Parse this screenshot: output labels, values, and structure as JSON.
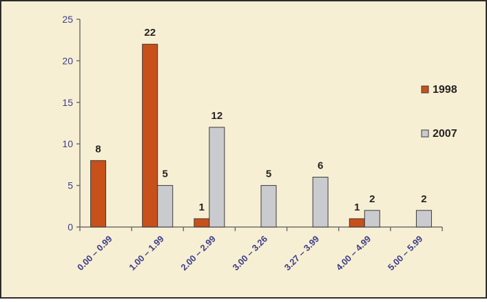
{
  "colors": {
    "background": "#f7efd3",
    "border": "#2b2b2b",
    "axis": "#6e6e6e",
    "tick_label": "#3c3c8c",
    "data_label": "#222222",
    "series_1998": "#c8501a",
    "series_2007": "#c9cbcf",
    "bar_stroke": "#3a3a3a"
  },
  "chart_data": {
    "type": "bar",
    "categories": [
      "0.00 – 0.99",
      "1.00 – 1.99",
      "2.00 – 2.99",
      "3.00 – 3.26",
      "3.27 – 3.99",
      "4.00 – 4.99",
      "5.00 – 5.99"
    ],
    "series": [
      {
        "name": "1998",
        "values": [
          8,
          22,
          1,
          0,
          0,
          1,
          0
        ],
        "labels": [
          "8",
          "22",
          "1",
          "",
          "",
          "1",
          ""
        ]
      },
      {
        "name": "2007",
        "values": [
          0,
          5,
          12,
          5,
          6,
          2,
          2
        ],
        "labels": [
          "",
          "5",
          "12",
          "5",
          "6",
          "2",
          "2"
        ]
      }
    ],
    "ylim": [
      0,
      25
    ],
    "yticks": [
      0,
      5,
      10,
      15,
      20,
      25
    ],
    "legend_position": "right",
    "grid": false
  }
}
